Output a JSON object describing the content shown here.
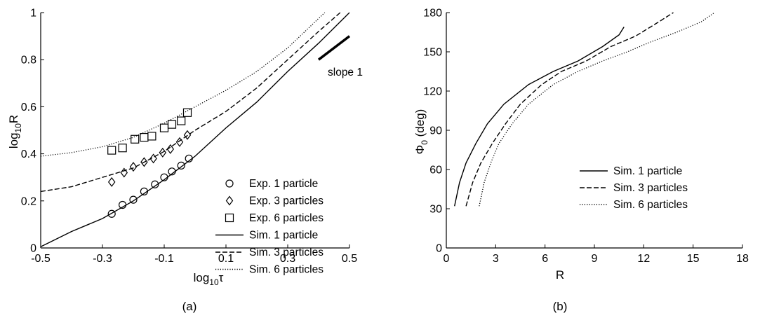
{
  "chart_data": [
    {
      "id": "a",
      "type": "scatter",
      "panel_label": "(a)",
      "xlabel_base": "log",
      "xlabel_sub": "10",
      "xlabel_sym": "τ",
      "ylabel_base": "log",
      "ylabel_sub": "10",
      "ylabel_sym": "R",
      "xlim": [
        -0.5,
        0.5
      ],
      "ylim": [
        0,
        1
      ],
      "xticks": [
        "-0.5",
        "-0.3",
        "-0.1",
        "0.1",
        "0.3",
        "0.5"
      ],
      "yticks": [
        "0",
        "0.2",
        "0.4",
        "0.6",
        "0.8",
        "1"
      ],
      "grid": false,
      "legend_position": "right",
      "annotation": {
        "text": "slope 1",
        "segment": [
          [
            0.4,
            0.8
          ],
          [
            0.5,
            0.9
          ]
        ]
      },
      "series": [
        {
          "name": "Exp. 1 particle",
          "kind": "scatter",
          "marker": "circle",
          "x": [
            -0.27,
            -0.235,
            -0.2,
            -0.165,
            -0.13,
            -0.1,
            -0.075,
            -0.045,
            -0.02
          ],
          "y": [
            0.145,
            0.183,
            0.205,
            0.24,
            0.27,
            0.3,
            0.325,
            0.35,
            0.38
          ]
        },
        {
          "name": "Exp. 3 particles",
          "kind": "scatter",
          "marker": "diamond",
          "x": [
            -0.27,
            -0.23,
            -0.2,
            -0.165,
            -0.135,
            -0.105,
            -0.08,
            -0.05,
            -0.025
          ],
          "y": [
            0.28,
            0.32,
            0.345,
            0.365,
            0.38,
            0.405,
            0.42,
            0.45,
            0.48
          ]
        },
        {
          "name": "Exp. 6 particles",
          "kind": "scatter",
          "marker": "square",
          "x": [
            -0.27,
            -0.235,
            -0.195,
            -0.165,
            -0.14,
            -0.1,
            -0.075,
            -0.045,
            -0.025
          ],
          "y": [
            0.415,
            0.425,
            0.462,
            0.47,
            0.475,
            0.51,
            0.525,
            0.54,
            0.575
          ]
        },
        {
          "name": "Sim. 1 particle",
          "kind": "line",
          "dash": "solid",
          "x": [
            -0.5,
            -0.4,
            -0.3,
            -0.2,
            -0.1,
            0.0,
            0.1,
            0.2,
            0.3,
            0.4,
            0.5
          ],
          "y": [
            0.005,
            0.07,
            0.125,
            0.2,
            0.29,
            0.39,
            0.51,
            0.62,
            0.75,
            0.87,
            1.0
          ]
        },
        {
          "name": "Sim. 3 particles",
          "kind": "line",
          "dash": "dashed",
          "x": [
            -0.5,
            -0.4,
            -0.3,
            -0.2,
            -0.1,
            0.0,
            0.1,
            0.2,
            0.3,
            0.4,
            0.47
          ],
          "y": [
            0.24,
            0.26,
            0.3,
            0.34,
            0.41,
            0.5,
            0.58,
            0.68,
            0.8,
            0.92,
            1.0
          ]
        },
        {
          "name": "Sim. 6 particles",
          "kind": "line",
          "dash": "dotted",
          "x": [
            -0.5,
            -0.4,
            -0.3,
            -0.2,
            -0.1,
            0.0,
            0.1,
            0.2,
            0.3,
            0.42
          ],
          "y": [
            0.39,
            0.405,
            0.43,
            0.47,
            0.53,
            0.6,
            0.67,
            0.75,
            0.85,
            1.0
          ]
        }
      ]
    },
    {
      "id": "b",
      "type": "line",
      "panel_label": "(b)",
      "xlabel": "R",
      "ylabel_sym": "Φ",
      "ylabel_sub": "0",
      "ylabel_rest": " (deg)",
      "xlim": [
        0,
        18
      ],
      "ylim": [
        0,
        180
      ],
      "xticks": [
        "0",
        "3",
        "6",
        "9",
        "12",
        "15",
        "18"
      ],
      "yticks": [
        "0",
        "30",
        "60",
        "90",
        "120",
        "150",
        "180"
      ],
      "grid": false,
      "legend_position": "right",
      "series": [
        {
          "name": "Sim. 1 particle",
          "dash": "solid",
          "x": [
            0.5,
            0.8,
            1.2,
            1.8,
            2.5,
            3.5,
            5.0,
            6.5,
            8.0,
            9.5,
            10.5,
            10.8
          ],
          "y": [
            32,
            50,
            65,
            80,
            95,
            110,
            125,
            135,
            143,
            154,
            163,
            169
          ]
        },
        {
          "name": "Sim. 3 particles",
          "dash": "dashed",
          "x": [
            1.2,
            1.6,
            2.1,
            2.8,
            3.6,
            4.5,
            5.8,
            7.0,
            8.5,
            10.0,
            11.5,
            12.8,
            13.8
          ],
          "y": [
            32,
            50,
            65,
            80,
            95,
            110,
            125,
            135,
            143,
            154,
            162,
            172,
            180
          ]
        },
        {
          "name": "Sim. 6 particles",
          "dash": "dotted",
          "x": [
            2.0,
            2.3,
            2.7,
            3.2,
            4.0,
            5.0,
            6.5,
            8.0,
            9.5,
            11.0,
            12.5,
            14.0,
            15.5,
            16.3
          ],
          "y": [
            32,
            50,
            65,
            80,
            95,
            110,
            125,
            135,
            143,
            150,
            158,
            165,
            173,
            180
          ]
        }
      ]
    }
  ]
}
